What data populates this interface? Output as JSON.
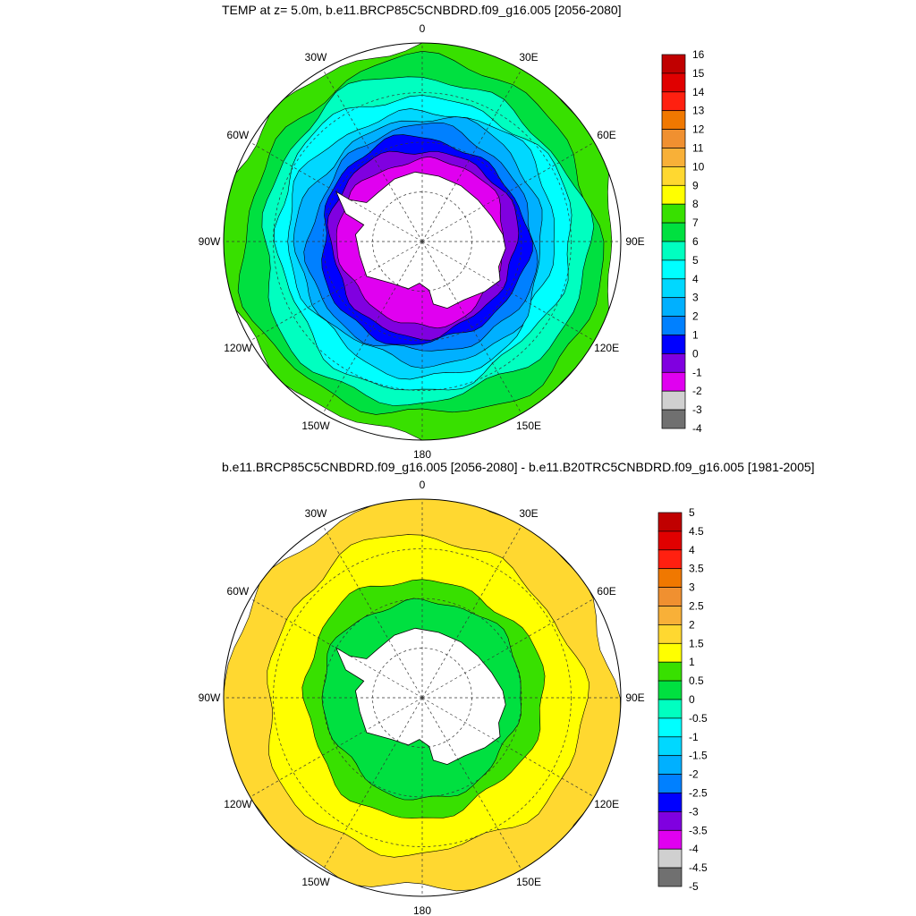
{
  "panels": [
    {
      "title": "TEMP at z=   5.0m, b.e11.BRCP85C5CNBDRD.f09_g16.005 [2056-2080]",
      "lon_labels": {
        "top": "0",
        "upper_left": "30W",
        "upper_right": "30E",
        "left_upper": "60W",
        "right_upper": "60E",
        "left": "90W",
        "right": "90E",
        "left_lower": "120W",
        "right_lower": "120E",
        "lower_left": "150W",
        "lower_right": "150E",
        "bottom": "180"
      },
      "colorbar": {
        "labels": [
          "16",
          "15",
          "14",
          "13",
          "12",
          "11",
          "10",
          "9",
          "8",
          "7",
          "6",
          "5",
          "4",
          "3",
          "2",
          "1",
          "0",
          "-1",
          "-2",
          "-3",
          "-4"
        ],
        "colors": [
          "#c00000",
          "#e00000",
          "#ff2010",
          "#f07800",
          "#f09030",
          "#f8b038",
          "#ffd830",
          "#ffff00",
          "#38e000",
          "#00e040",
          "#00ffc0",
          "#00ffff",
          "#00d8ff",
          "#00b0ff",
          "#0080ff",
          "#0000ff",
          "#8000e0",
          "#e000f0",
          "#d0d0d0",
          "#707070"
        ]
      },
      "rings": [
        {
          "r": 1.0,
          "c": "#38e000"
        },
        {
          "r": 0.9,
          "c": "#00e040"
        },
        {
          "r": 0.82,
          "c": "#00ffc0"
        },
        {
          "r": 0.74,
          "c": "#00ffff"
        },
        {
          "r": 0.67,
          "c": "#00d8ff"
        },
        {
          "r": 0.62,
          "c": "#00b0ff"
        },
        {
          "r": 0.57,
          "c": "#0080ff"
        },
        {
          "r": 0.52,
          "c": "#0000ff"
        },
        {
          "r": 0.47,
          "c": "#8000e0"
        },
        {
          "r": 0.42,
          "c": "#e000f0"
        }
      ]
    },
    {
      "title": "b.e11.BRCP85C5CNBDRD.f09_g16.005 [2056-2080] - b.e11.B20TRC5CNBDRD.f09_g16.005 [1981-2005]",
      "lon_labels": {
        "top": "0",
        "upper_left": "30W",
        "upper_right": "30E",
        "left_upper": "60W",
        "right_upper": "60E",
        "left": "90W",
        "right": "90E",
        "left_lower": "120W",
        "right_lower": "120E",
        "lower_left": "150W",
        "lower_right": "150E",
        "bottom": "180"
      },
      "colorbar": {
        "labels": [
          "5",
          "4.5",
          "4",
          "3.5",
          "3",
          "2.5",
          "2",
          "1.5",
          "1",
          "0.5",
          "0",
          "-0.5",
          "-1",
          "-1.5",
          "-2",
          "-2.5",
          "-3",
          "-3.5",
          "-4",
          "-4.5",
          "-5"
        ],
        "colors": [
          "#c00000",
          "#e00000",
          "#ff2010",
          "#f07800",
          "#f09030",
          "#f8b038",
          "#ffd830",
          "#ffff00",
          "#38e000",
          "#00e040",
          "#00ffc0",
          "#00ffff",
          "#00d8ff",
          "#00b0ff",
          "#0080ff",
          "#0000ff",
          "#8000e0",
          "#e000f0",
          "#d0d0d0",
          "#707070"
        ]
      },
      "rings": [
        {
          "r": 1.0,
          "c": "#ffd830"
        },
        {
          "r": 0.8,
          "c": "#ffff00"
        },
        {
          "r": 0.6,
          "c": "#38e000"
        },
        {
          "r": 0.5,
          "c": "#00e040"
        }
      ]
    }
  ]
}
